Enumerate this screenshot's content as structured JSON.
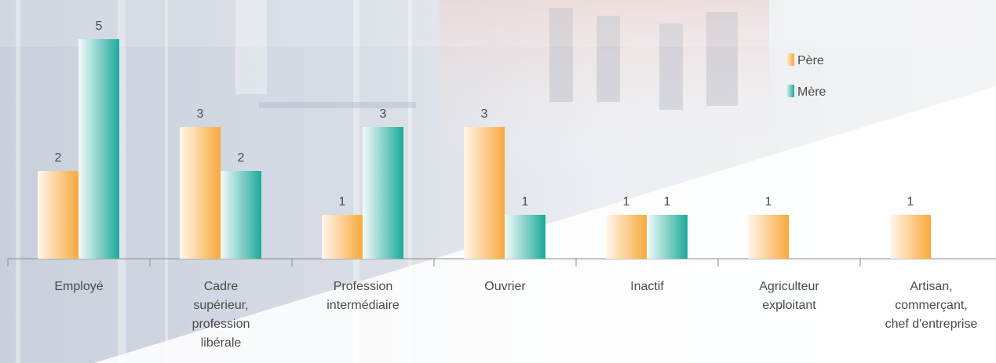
{
  "chart_data": {
    "type": "bar",
    "title": "",
    "xlabel": "",
    "ylabel": "",
    "ylim": [
      0,
      5.4
    ],
    "grid": false,
    "legend_position": "top-right",
    "categories": [
      [
        "Employé"
      ],
      [
        "Cadre",
        "supérieur,",
        "profession",
        "libérale"
      ],
      [
        "Profession",
        "intermédiaire"
      ],
      [
        "Ouvrier"
      ],
      [
        "Inactif"
      ],
      [
        "Agriculteur",
        "exploitant"
      ],
      [
        "Artisan,",
        "commerçant,",
        "chef d'entreprise"
      ]
    ],
    "series": [
      {
        "name": "Père",
        "values": [
          2,
          3,
          1,
          3,
          1,
          1,
          1
        ],
        "color_light": "#fff7ec",
        "color": "#f9a93c"
      },
      {
        "name": "Mère",
        "values": [
          5,
          2,
          3,
          1,
          1,
          null,
          null
        ],
        "color_light": "#f3fbfa",
        "color": "#1ea99a"
      }
    ]
  },
  "colors": {
    "axis": "#8a8a8a",
    "label_text": "#4a4a4a"
  }
}
